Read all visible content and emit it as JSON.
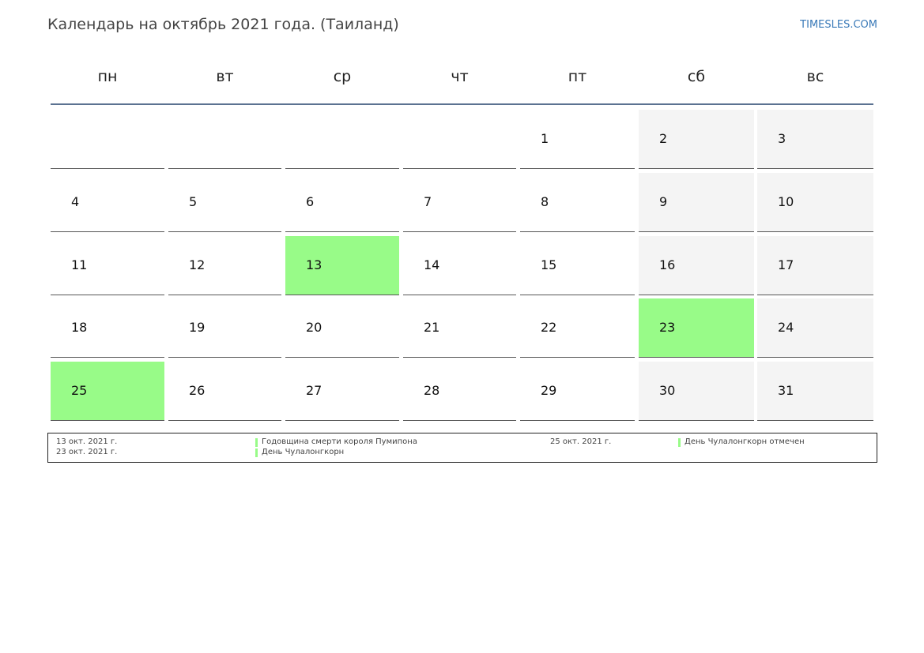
{
  "header": {
    "title": "Календарь на октябрь 2021 года. (Таиланд)",
    "site": "TIMESLES.COM"
  },
  "weekdays": [
    "пн",
    "вт",
    "ср",
    "чт",
    "пт",
    "сб",
    "вс"
  ],
  "weeks": [
    [
      null,
      null,
      null,
      null,
      {
        "day": "1"
      },
      {
        "day": "2"
      },
      {
        "day": "3"
      }
    ],
    [
      {
        "day": "4"
      },
      {
        "day": "5"
      },
      {
        "day": "6"
      },
      {
        "day": "7"
      },
      {
        "day": "8"
      },
      {
        "day": "9"
      },
      {
        "day": "10"
      }
    ],
    [
      {
        "day": "11"
      },
      {
        "day": "12"
      },
      {
        "day": "13",
        "holiday": true
      },
      {
        "day": "14"
      },
      {
        "day": "15"
      },
      {
        "day": "16"
      },
      {
        "day": "17"
      }
    ],
    [
      {
        "day": "18"
      },
      {
        "day": "19"
      },
      {
        "day": "20"
      },
      {
        "day": "21"
      },
      {
        "day": "22"
      },
      {
        "day": "23",
        "holiday": true
      },
      {
        "day": "24"
      }
    ],
    [
      {
        "day": "25",
        "holiday": true
      },
      {
        "day": "26"
      },
      {
        "day": "27"
      },
      {
        "day": "28"
      },
      {
        "day": "29"
      },
      {
        "day": "30"
      },
      {
        "day": "31"
      }
    ]
  ],
  "holidays": [
    {
      "date": "13 окт. 2021 г.",
      "name": "Годовщина смерти короля Пумипона"
    },
    {
      "date": "23 окт. 2021 г.",
      "name": "День Чулалонгкорн"
    },
    {
      "date": "25 окт. 2021 г.",
      "name": "День Чулалонгкорн отмечен"
    }
  ]
}
